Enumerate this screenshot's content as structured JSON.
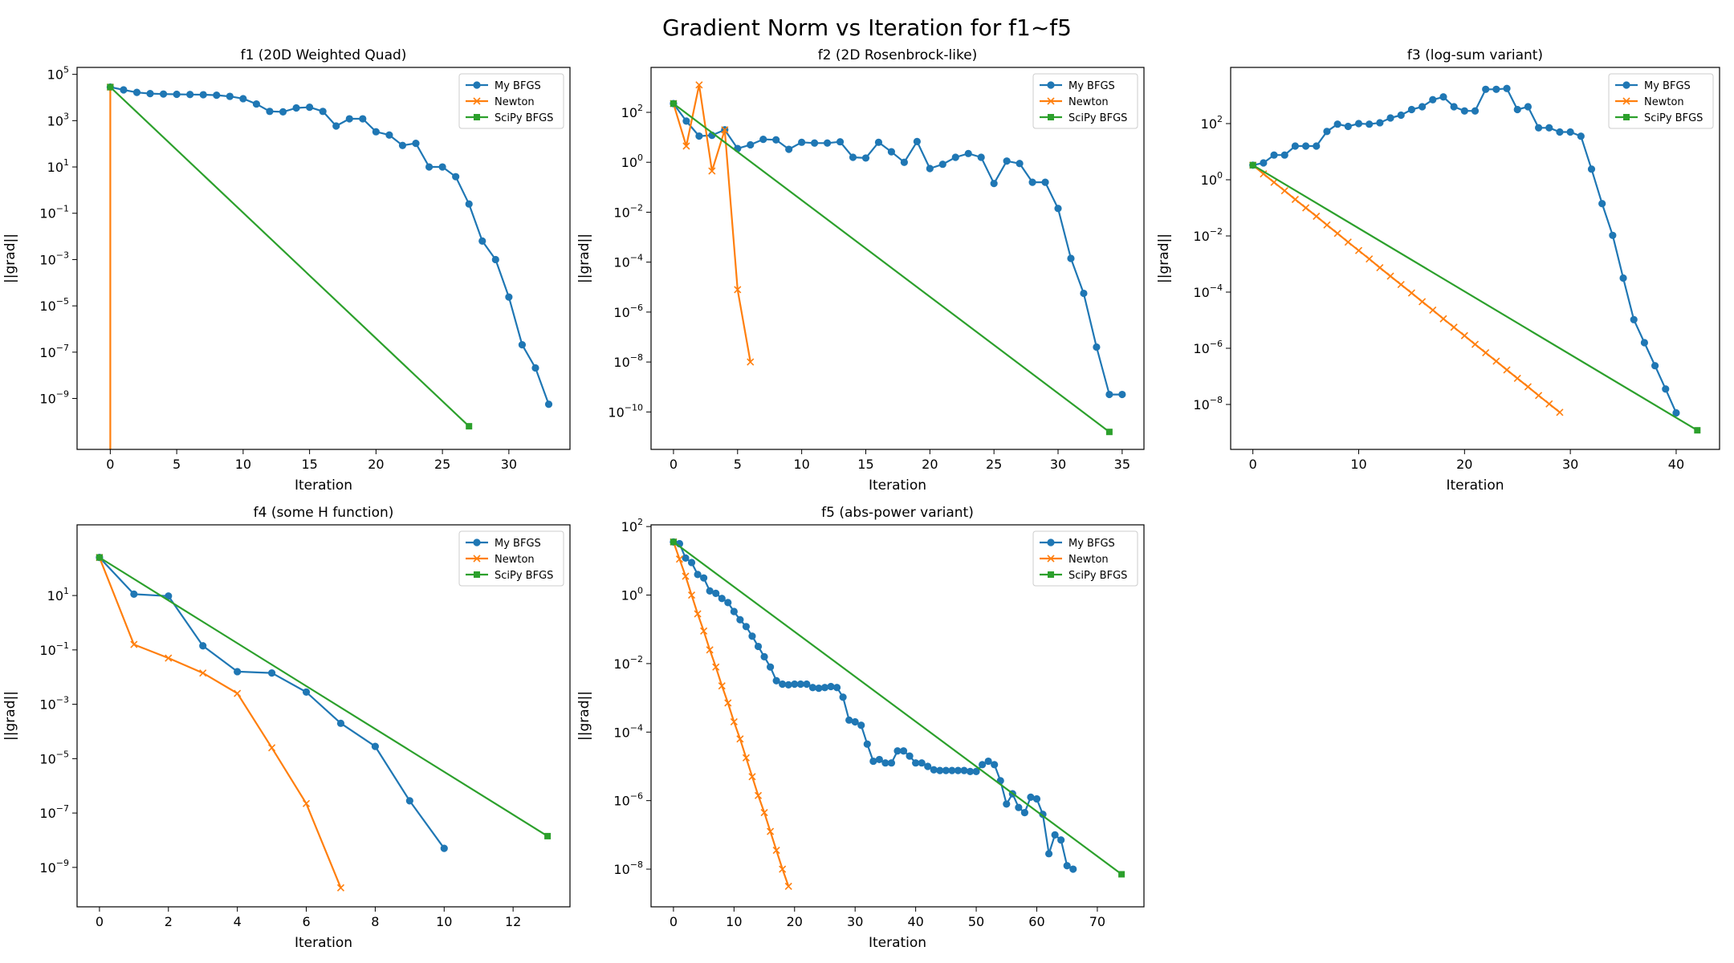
{
  "figure": {
    "title": "Gradient Norm vs Iteration for f1~f5"
  },
  "colors": {
    "my_bfgs": "#1f77b4",
    "newton": "#ff7f0e",
    "scipy_bfgs": "#2ca02c"
  },
  "chart_data": [
    {
      "type": "line",
      "title": "f1 (20D Weighted Quad)",
      "xlabel": "Iteration",
      "ylabel": "||grad||",
      "yscale": "log",
      "xlim": [
        -2.5,
        34.6
      ],
      "ylim_log10": [
        -11.2,
        5.3
      ],
      "xticks": [
        0,
        5,
        10,
        15,
        20,
        25,
        30
      ],
      "yticks_exp": [
        -9,
        -7,
        -5,
        -3,
        -1,
        1,
        3,
        5
      ],
      "legend": "top-right",
      "series": [
        {
          "name": "My BFGS",
          "marker": "circle",
          "x": [
            0,
            1,
            2,
            3,
            4,
            5,
            6,
            7,
            8,
            9,
            10,
            11,
            12,
            13,
            14,
            15,
            16,
            17,
            18,
            19,
            20,
            21,
            22,
            23,
            24,
            25,
            26,
            27,
            28,
            29,
            30,
            31,
            32,
            33
          ],
          "y_log10": [
            4.45,
            4.33,
            4.22,
            4.17,
            4.15,
            4.14,
            4.13,
            4.12,
            4.1,
            4.05,
            3.95,
            3.72,
            3.4,
            3.38,
            3.55,
            3.58,
            3.4,
            2.77,
            3.08,
            3.08,
            2.52,
            2.38,
            1.93,
            2.02,
            1.0,
            1.0,
            0.58,
            -0.6,
            -2.2,
            -3.0,
            -4.62,
            -6.68,
            -7.68,
            -9.25
          ]
        },
        {
          "name": "Newton",
          "marker": "x",
          "x": [
            0,
            0
          ],
          "y_log10": [
            4.45,
            -11.5
          ]
        },
        {
          "name": "SciPy BFGS",
          "marker": "square",
          "x": [
            0,
            27
          ],
          "y_log10": [
            4.45,
            -10.2
          ]
        }
      ]
    },
    {
      "type": "line",
      "title": "f2 (2D Rosenbrock-like)",
      "xlabel": "Iteration",
      "ylabel": "||grad||",
      "yscale": "log",
      "xlim": [
        -1.75,
        36.7
      ],
      "ylim_log10": [
        -11.5,
        3.8
      ],
      "xticks": [
        0,
        5,
        10,
        15,
        20,
        25,
        30,
        35
      ],
      "yticks_exp": [
        -10,
        -8,
        -6,
        -4,
        -2,
        0,
        2
      ],
      "legend": "top-right",
      "series": [
        {
          "name": "My BFGS",
          "marker": "circle",
          "x": [
            0,
            1,
            2,
            3,
            4,
            5,
            6,
            7,
            8,
            9,
            10,
            11,
            12,
            13,
            14,
            15,
            16,
            17,
            18,
            19,
            20,
            21,
            22,
            23,
            24,
            25,
            26,
            27,
            28,
            29,
            30,
            31,
            32,
            33,
            34,
            35
          ],
          "y_log10": [
            2.35,
            1.65,
            1.05,
            1.08,
            1.3,
            0.55,
            0.7,
            0.92,
            0.9,
            0.52,
            0.8,
            0.77,
            0.77,
            0.82,
            0.2,
            0.17,
            0.8,
            0.42,
            0.0,
            0.83,
            -0.25,
            -0.08,
            0.2,
            0.35,
            0.2,
            -0.85,
            0.05,
            -0.05,
            -0.8,
            -0.8,
            -1.85,
            -3.85,
            -5.25,
            -7.4,
            -9.3,
            -9.3
          ]
        },
        {
          "name": "Newton",
          "marker": "x",
          "x": [
            0,
            1,
            2,
            3,
            4,
            5,
            6
          ],
          "y_log10": [
            2.35,
            0.65,
            3.1,
            -0.35,
            1.3,
            -5.1,
            -8.0
          ]
        },
        {
          "name": "SciPy BFGS",
          "marker": "square",
          "x": [
            0,
            34
          ],
          "y_log10": [
            2.35,
            -10.8
          ]
        }
      ]
    },
    {
      "type": "line",
      "title": "f3 (log-sum variant)",
      "xlabel": "Iteration",
      "ylabel": "||grad||",
      "yscale": "log",
      "xlim": [
        -2.1,
        44.1
      ],
      "ylim_log10": [
        -9.6,
        4.0
      ],
      "xticks": [
        0,
        10,
        20,
        30,
        40
      ],
      "yticks_exp": [
        -8,
        -6,
        -4,
        -2,
        0,
        2
      ],
      "legend": "top-right",
      "series": [
        {
          "name": "My BFGS",
          "marker": "circle",
          "x": [
            0,
            1,
            2,
            3,
            4,
            5,
            6,
            7,
            8,
            9,
            10,
            11,
            12,
            13,
            14,
            15,
            16,
            17,
            18,
            19,
            20,
            21,
            22,
            23,
            24,
            25,
            26,
            27,
            28,
            29,
            30,
            31,
            32,
            33,
            34,
            35,
            36,
            37,
            38,
            39,
            40
          ],
          "y_log10": [
            0.52,
            0.6,
            0.88,
            0.88,
            1.2,
            1.2,
            1.2,
            1.72,
            1.98,
            1.9,
            2.0,
            1.98,
            2.03,
            2.2,
            2.3,
            2.5,
            2.6,
            2.85,
            2.95,
            2.6,
            2.45,
            2.45,
            3.22,
            3.22,
            3.25,
            2.5,
            2.6,
            1.85,
            1.85,
            1.7,
            1.7,
            1.55,
            0.38,
            -0.85,
            -1.98,
            -3.5,
            -4.98,
            -5.8,
            -6.62,
            -7.45,
            -8.3
          ]
        },
        {
          "name": "Newton",
          "marker": "x",
          "x": [
            0,
            1,
            2,
            3,
            4,
            5,
            6,
            7,
            8,
            9,
            10,
            11,
            12,
            13,
            14,
            15,
            16,
            17,
            18,
            19,
            20,
            21,
            22,
            23,
            24,
            25,
            26,
            27,
            28,
            29
          ],
          "y_log10": [
            0.52,
            0.21,
            -0.09,
            -0.39,
            -0.7,
            -1.0,
            -1.3,
            -1.61,
            -1.91,
            -2.22,
            -2.52,
            -2.82,
            -3.13,
            -3.43,
            -3.73,
            -4.03,
            -4.34,
            -4.64,
            -4.95,
            -5.25,
            -5.55,
            -5.86,
            -6.16,
            -6.46,
            -6.77,
            -7.07,
            -7.37,
            -7.68,
            -7.98,
            -8.28
          ]
        },
        {
          "name": "SciPy BFGS",
          "marker": "square",
          "x": [
            0,
            42
          ],
          "y_log10": [
            0.52,
            -8.92
          ]
        }
      ]
    },
    {
      "type": "line",
      "title": "f4 (some H function)",
      "xlabel": "Iteration",
      "ylabel": "||grad||",
      "yscale": "log",
      "xlim": [
        -0.65,
        13.65
      ],
      "ylim_log10": [
        -10.45,
        3.6
      ],
      "xticks": [
        0,
        2,
        4,
        6,
        8,
        10,
        12
      ],
      "yticks_exp": [
        -9,
        -7,
        -5,
        -3,
        -1,
        1
      ],
      "legend": "top-right",
      "series": [
        {
          "name": "My BFGS",
          "marker": "circle",
          "x": [
            0,
            1,
            2,
            3,
            4,
            5,
            6,
            7,
            8,
            9,
            10
          ],
          "y_log10": [
            2.4,
            1.05,
            0.98,
            -0.85,
            -1.8,
            -1.85,
            -2.55,
            -3.7,
            -4.55,
            -6.55,
            -8.3
          ]
        },
        {
          "name": "Newton",
          "marker": "x",
          "x": [
            0,
            1,
            2,
            3,
            4,
            5,
            6,
            7
          ],
          "y_log10": [
            2.4,
            -0.8,
            -1.3,
            -1.85,
            -2.6,
            -4.6,
            -6.65,
            -9.75
          ]
        },
        {
          "name": "SciPy BFGS",
          "marker": "square",
          "x": [
            0,
            13
          ],
          "y_log10": [
            2.4,
            -7.85
          ]
        }
      ]
    },
    {
      "type": "line",
      "title": "f5 (abs-power variant)",
      "xlabel": "Iteration",
      "ylabel": "||grad||",
      "yscale": "log",
      "xlim": [
        -3.7,
        77.7
      ],
      "ylim_log10": [
        -9.1,
        2.05
      ],
      "xticks": [
        0,
        10,
        20,
        30,
        40,
        50,
        60,
        70
      ],
      "yticks_exp": [
        -8,
        -6,
        -4,
        -2,
        0,
        2
      ],
      "legend": "top-right",
      "series": [
        {
          "name": "My BFGS",
          "marker": "circle",
          "x": [
            0,
            1,
            2,
            3,
            4,
            5,
            6,
            7,
            8,
            9,
            10,
            11,
            12,
            13,
            14,
            15,
            16,
            17,
            18,
            19,
            20,
            21,
            22,
            23,
            24,
            25,
            26,
            27,
            28,
            29,
            30,
            31,
            32,
            33,
            34,
            35,
            36,
            37,
            38,
            39,
            40,
            41,
            42,
            43,
            44,
            45,
            46,
            47,
            48,
            49,
            50,
            51,
            52,
            53,
            54,
            55,
            56,
            57,
            58,
            59,
            60,
            61,
            62,
            63,
            64,
            65,
            66
          ],
          "y_log10": [
            1.55,
            1.5,
            1.08,
            0.95,
            0.6,
            0.5,
            0.12,
            0.05,
            -0.1,
            -0.22,
            -0.48,
            -0.72,
            -0.92,
            -1.2,
            -1.5,
            -1.8,
            -2.1,
            -2.5,
            -2.6,
            -2.62,
            -2.6,
            -2.6,
            -2.6,
            -2.7,
            -2.72,
            -2.7,
            -2.67,
            -2.7,
            -2.98,
            -3.65,
            -3.7,
            -3.8,
            -4.35,
            -4.85,
            -4.8,
            -4.9,
            -4.9,
            -4.55,
            -4.55,
            -4.7,
            -4.9,
            -4.9,
            -5.0,
            -5.1,
            -5.12,
            -5.12,
            -5.12,
            -5.12,
            -5.12,
            -5.15,
            -5.15,
            -4.95,
            -4.85,
            -4.95,
            -5.42,
            -6.1,
            -5.8,
            -6.2,
            -6.35,
            -5.9,
            -5.95,
            -6.4,
            -7.55,
            -7.0,
            -7.15,
            -7.9,
            -8.0
          ]
        },
        {
          "name": "Newton",
          "marker": "x",
          "x": [
            0,
            1,
            2,
            3,
            4,
            5,
            6,
            7,
            8,
            9,
            10,
            11,
            12,
            13,
            14,
            15,
            16,
            17,
            18,
            19
          ],
          "y_log10": [
            1.55,
            1.05,
            0.55,
            0.0,
            -0.55,
            -1.05,
            -1.6,
            -2.1,
            -2.65,
            -3.15,
            -3.7,
            -4.2,
            -4.75,
            -5.3,
            -5.85,
            -6.35,
            -6.9,
            -7.45,
            -8.0,
            -8.5
          ]
        },
        {
          "name": "SciPy BFGS",
          "marker": "square",
          "x": [
            0,
            74
          ],
          "y_log10": [
            1.55,
            -8.15
          ]
        }
      ]
    }
  ]
}
